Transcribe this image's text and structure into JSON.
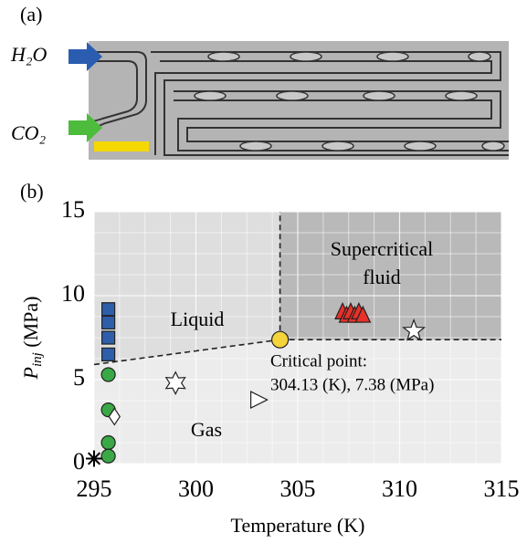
{
  "panel_a": {
    "label": "(a)",
    "inlet_top": "H₂O",
    "inlet_bottom": "CO₂"
  },
  "chart_data": {
    "type": "scatter",
    "panel_label": "(b)",
    "x_label": "Temperature (K)",
    "y_label": [
      "P",
      "inj",
      " (MPa)"
    ],
    "xlim": [
      295,
      315
    ],
    "xticks": [
      295,
      300,
      305,
      310,
      315
    ],
    "ylim": [
      0,
      15
    ],
    "yticks": [
      0,
      5,
      10,
      15
    ],
    "grid": true,
    "phase_boundary_start": [
      295,
      5.9
    ],
    "region_labels": [
      "Liquid",
      "Gas",
      "Supercritical",
      "fluid"
    ],
    "critical_label": [
      "Critical point:",
      "304.13 (K), 7.38 (MPa)"
    ],
    "series": [
      {
        "marker": "square",
        "color": "#2e5eaa",
        "x": [
          295.7,
          295.7,
          295.7,
          295.7
        ],
        "y": [
          6.5,
          7.5,
          8.4,
          9.2
        ]
      },
      {
        "marker": "circle",
        "color": "#3aa845",
        "x": [
          295.7,
          295.7,
          295.7,
          295.7
        ],
        "y": [
          5.3,
          3.2,
          1.25,
          0.45
        ]
      },
      {
        "marker": "diamond",
        "color": "#ffffff",
        "x": [
          296.0
        ],
        "y": [
          2.8
        ]
      },
      {
        "marker": "hexagram",
        "color": "#ffffff",
        "x": [
          299.0
        ],
        "y": [
          4.8
        ]
      },
      {
        "marker": "triangle-right",
        "color": "#ffffff",
        "x": [
          303.1
        ],
        "y": [
          3.8
        ]
      },
      {
        "marker": "triangle-up",
        "color": "#e8302a",
        "x": [
          307.2,
          307.4,
          307.6,
          307.8,
          308.0,
          308.2
        ],
        "y": [
          9.0,
          8.8,
          9.0,
          8.8,
          9.0,
          8.8
        ]
      },
      {
        "marker": "pentagram",
        "color": "#ffffff",
        "x": [
          310.7
        ],
        "y": [
          7.9
        ]
      },
      {
        "marker": "asterisk",
        "color": "#000000",
        "x": [
          295.0
        ],
        "y": [
          0.3
        ]
      },
      {
        "marker": "circle",
        "color": "#f5d33a",
        "x": [
          304.13
        ],
        "y": [
          7.38
        ]
      }
    ]
  }
}
